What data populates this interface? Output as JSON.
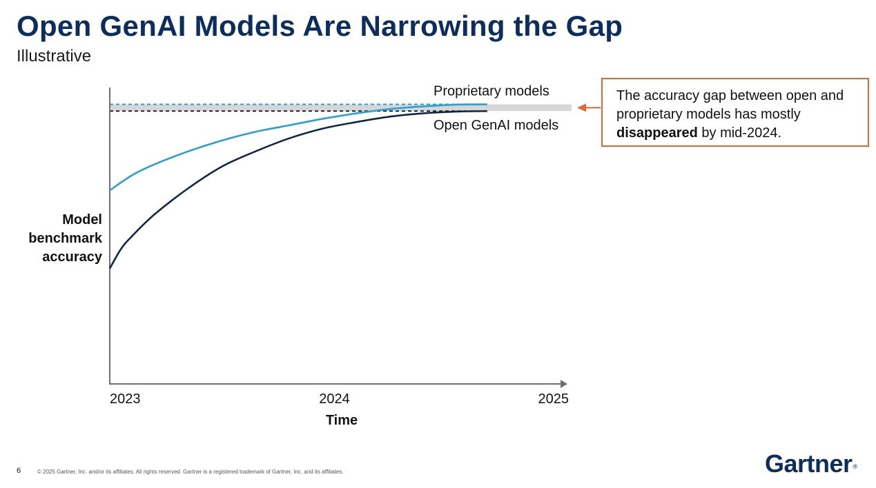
{
  "slide": {
    "title": "Open GenAI Models Are Narrowing the Gap",
    "subtitle": "Illustrative",
    "callout": {
      "text_before": "The accuracy gap between open and proprietary models has mostly ",
      "text_bold": "disappeared",
      "text_after": " by mid-2024."
    },
    "footer": {
      "page_number": "6",
      "copyright": "© 2025 Gartner, Inc. and/or its affiliates. All rights reserved. Gartner is a registered trademark of Gartner, Inc. and its affiliates.",
      "logo_text": "Gartner",
      "logo_mark": "®"
    }
  },
  "colors": {
    "title": "#0b2d5f",
    "proprietary": "#2a9fd0",
    "open": "#0e2548",
    "gap_band": "#d6d6d6",
    "callout_border": "#e5692f",
    "axis": "#6e6e6e"
  },
  "chart_data": {
    "type": "line",
    "title": "",
    "xlabel": "Time",
    "ylabel": "Model benchmark accuracy",
    "x_ticks": [
      "2023",
      "2024",
      "2025"
    ],
    "xlim": [
      2023,
      2025
    ],
    "ylim": [
      0,
      100
    ],
    "series": [
      {
        "name": "Proprietary models",
        "x": [
          2023.0,
          2023.1,
          2023.2,
          2023.35,
          2023.5,
          2023.65,
          2023.8,
          2023.95,
          2024.1,
          2024.25,
          2024.4,
          2024.55,
          2024.68
        ],
        "y": [
          59,
          66,
          71,
          77,
          82,
          86,
          89,
          92,
          94.5,
          96.5,
          97.7,
          98.5,
          98.6
        ]
      },
      {
        "name": "Open GenAI models",
        "x": [
          2023.0,
          2023.05,
          2023.1,
          2023.2,
          2023.35,
          2023.5,
          2023.65,
          2023.8,
          2023.95,
          2024.1,
          2024.25,
          2024.4,
          2024.55,
          2024.68
        ],
        "y": [
          23,
          32,
          38,
          48,
          60,
          70,
          77,
          83,
          87.5,
          90.5,
          93,
          94.5,
          95.3,
          95.5
        ]
      }
    ],
    "reference_lines": [
      {
        "label": "Proprietary models",
        "y": 98.6,
        "style": "dashed"
      },
      {
        "label": "Open GenAI models",
        "y": 95.5,
        "style": "dashed"
      }
    ],
    "annotation": "The accuracy gap between open and proprietary models has mostly disappeared by mid-2024."
  }
}
